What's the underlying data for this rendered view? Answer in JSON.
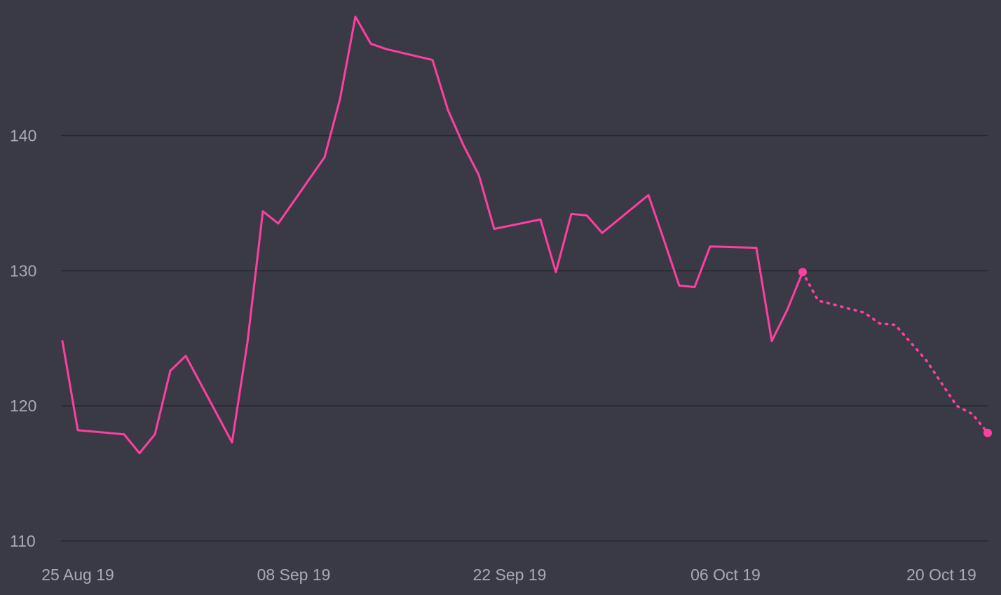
{
  "colors": {
    "background": "#3a3a47",
    "gridline": "#26262f",
    "series": "#ff3fa0",
    "tick_label": "#a9a9b8"
  },
  "chart_data": {
    "type": "line",
    "title": "",
    "xlabel": "",
    "ylabel": "",
    "ylim": [
      110,
      149
    ],
    "xlim": [
      "2019-08-24",
      "2019-10-23"
    ],
    "y_ticks": [
      110,
      120,
      130,
      140
    ],
    "grid": true,
    "legend": "none",
    "x_ticks": [
      {
        "date": "2019-08-25",
        "label": "25 Aug 19"
      },
      {
        "date": "2019-09-08",
        "label": "08 Sep 19"
      },
      {
        "date": "2019-09-22",
        "label": "22 Sep 19"
      },
      {
        "date": "2019-10-06",
        "label": "06 Oct 19"
      },
      {
        "date": "2019-10-20",
        "label": "20 Oct 19"
      }
    ],
    "series": [
      {
        "style": "solid",
        "points": [
          {
            "x": "2019-08-24",
            "y": 124.8
          },
          {
            "x": "2019-08-25",
            "y": 118.2
          },
          {
            "x": "2019-08-28",
            "y": 117.9
          },
          {
            "x": "2019-08-29",
            "y": 116.5
          },
          {
            "x": "2019-08-30",
            "y": 117.9
          },
          {
            "x": "2019-08-31",
            "y": 122.6
          },
          {
            "x": "2019-09-01",
            "y": 123.7
          },
          {
            "x": "2019-09-04",
            "y": 117.3
          },
          {
            "x": "2019-09-05",
            "y": 124.7
          },
          {
            "x": "2019-09-06",
            "y": 134.4
          },
          {
            "x": "2019-09-07",
            "y": 133.5
          },
          {
            "x": "2019-09-10",
            "y": 138.4
          },
          {
            "x": "2019-09-11",
            "y": 142.7
          },
          {
            "x": "2019-09-12",
            "y": 148.8
          },
          {
            "x": "2019-09-13",
            "y": 146.8
          },
          {
            "x": "2019-09-14",
            "y": 146.4
          },
          {
            "x": "2019-09-17",
            "y": 145.6
          },
          {
            "x": "2019-09-18",
            "y": 141.9
          },
          {
            "x": "2019-09-19",
            "y": 139.3
          },
          {
            "x": "2019-09-20",
            "y": 137.1
          },
          {
            "x": "2019-09-21",
            "y": 133.1
          },
          {
            "x": "2019-09-24",
            "y": 133.8
          },
          {
            "x": "2019-09-25",
            "y": 129.9
          },
          {
            "x": "2019-09-26",
            "y": 134.2
          },
          {
            "x": "2019-09-27",
            "y": 134.1
          },
          {
            "x": "2019-09-28",
            "y": 132.8
          },
          {
            "x": "2019-10-01",
            "y": 135.6
          },
          {
            "x": "2019-10-02",
            "y": 132.3
          },
          {
            "x": "2019-10-03",
            "y": 128.9
          },
          {
            "x": "2019-10-04",
            "y": 128.8
          },
          {
            "x": "2019-10-05",
            "y": 131.8
          },
          {
            "x": "2019-10-08",
            "y": 131.7
          },
          {
            "x": "2019-10-09",
            "y": 124.8
          },
          {
            "x": "2019-10-10",
            "y": 127.1
          },
          {
            "x": "2019-10-11",
            "y": 129.9
          }
        ]
      },
      {
        "style": "dotted",
        "end_markers": true,
        "points": [
          {
            "x": "2019-10-11",
            "y": 129.9
          },
          {
            "x": "2019-10-12",
            "y": 127.8
          },
          {
            "x": "2019-10-15",
            "y": 126.9
          },
          {
            "x": "2019-10-16",
            "y": 126.1
          },
          {
            "x": "2019-10-17",
            "y": 126.0
          },
          {
            "x": "2019-10-19",
            "y": 123.4
          },
          {
            "x": "2019-10-21",
            "y": 120.0
          },
          {
            "x": "2019-10-22",
            "y": 119.4
          },
          {
            "x": "2019-10-23",
            "y": 118.0
          }
        ]
      }
    ]
  }
}
